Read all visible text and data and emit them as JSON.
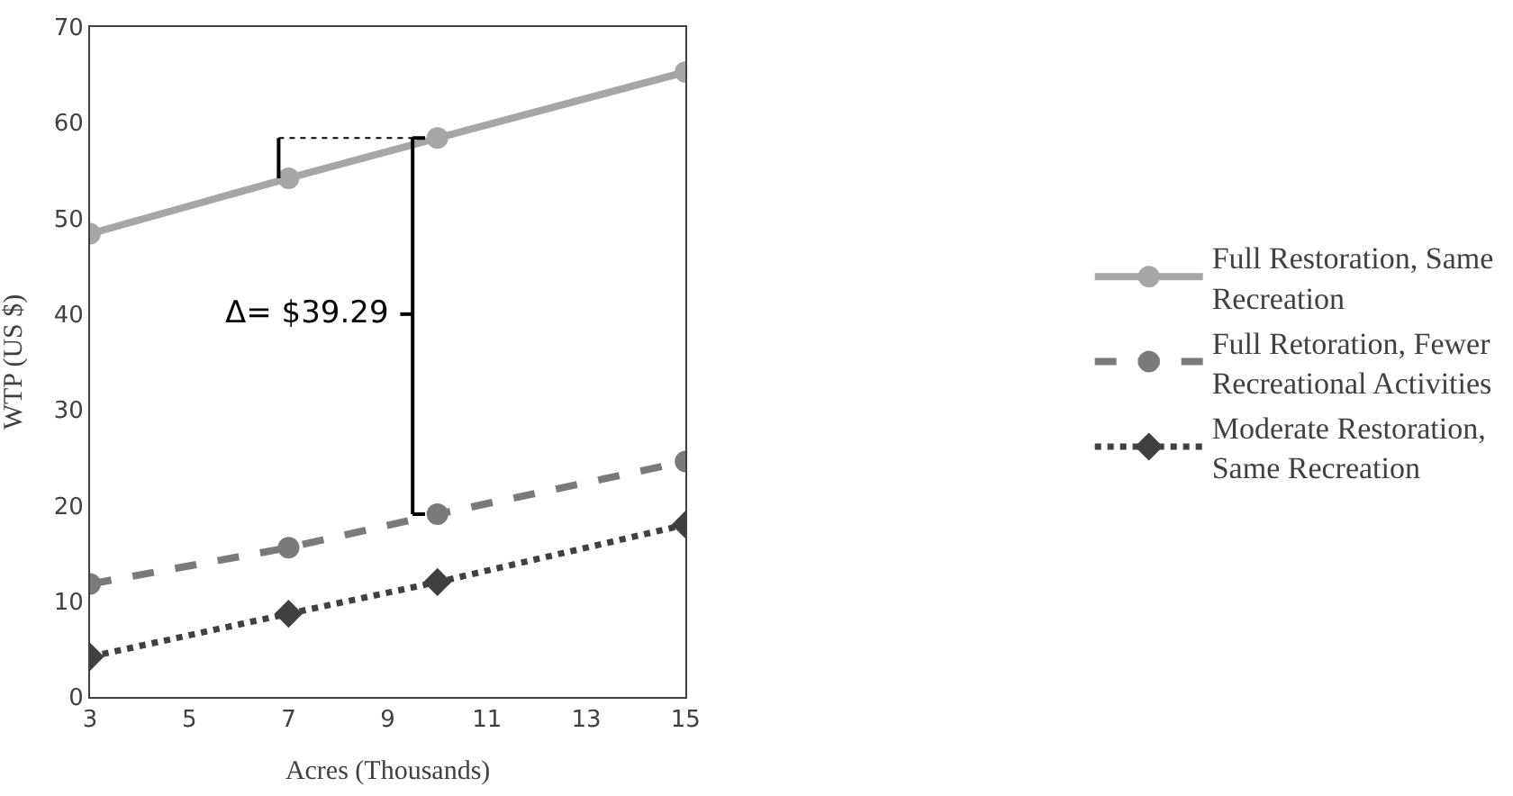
{
  "chart_data": {
    "type": "line",
    "xlabel": "Acres (Thousands)",
    "ylabel": "WTP (US $)",
    "x": [
      3,
      7,
      10,
      15
    ],
    "series": [
      {
        "name": "Full Restoration, Same Recreation",
        "color": "#a6a6a6",
        "values": [
          48.4,
          54.2,
          58.4,
          65.3
        ],
        "marker": "circle",
        "line_style": "solid"
      },
      {
        "name": "Full Retoration, Fewer Recreational Activities",
        "color": "#7a7a7a",
        "values": [
          11.8,
          15.6,
          19.1,
          24.6
        ],
        "marker": "circle",
        "line_style": "dashed"
      },
      {
        "name": "Moderate Restoration, Same Recreation",
        "color": "#404040",
        "values": [
          4.2,
          8.7,
          12.0,
          18.0
        ],
        "marker": "diamond",
        "line_style": "dotted"
      }
    ],
    "xlim": [
      3,
      15
    ],
    "xticks": [
      3,
      5,
      7,
      9,
      11,
      13,
      15
    ],
    "ylim": [
      0,
      70
    ],
    "yticks": [
      0,
      10,
      20,
      30,
      40,
      50,
      60,
      70
    ],
    "legend": "right",
    "annotations": [
      "Δ= $39.29"
    ]
  }
}
